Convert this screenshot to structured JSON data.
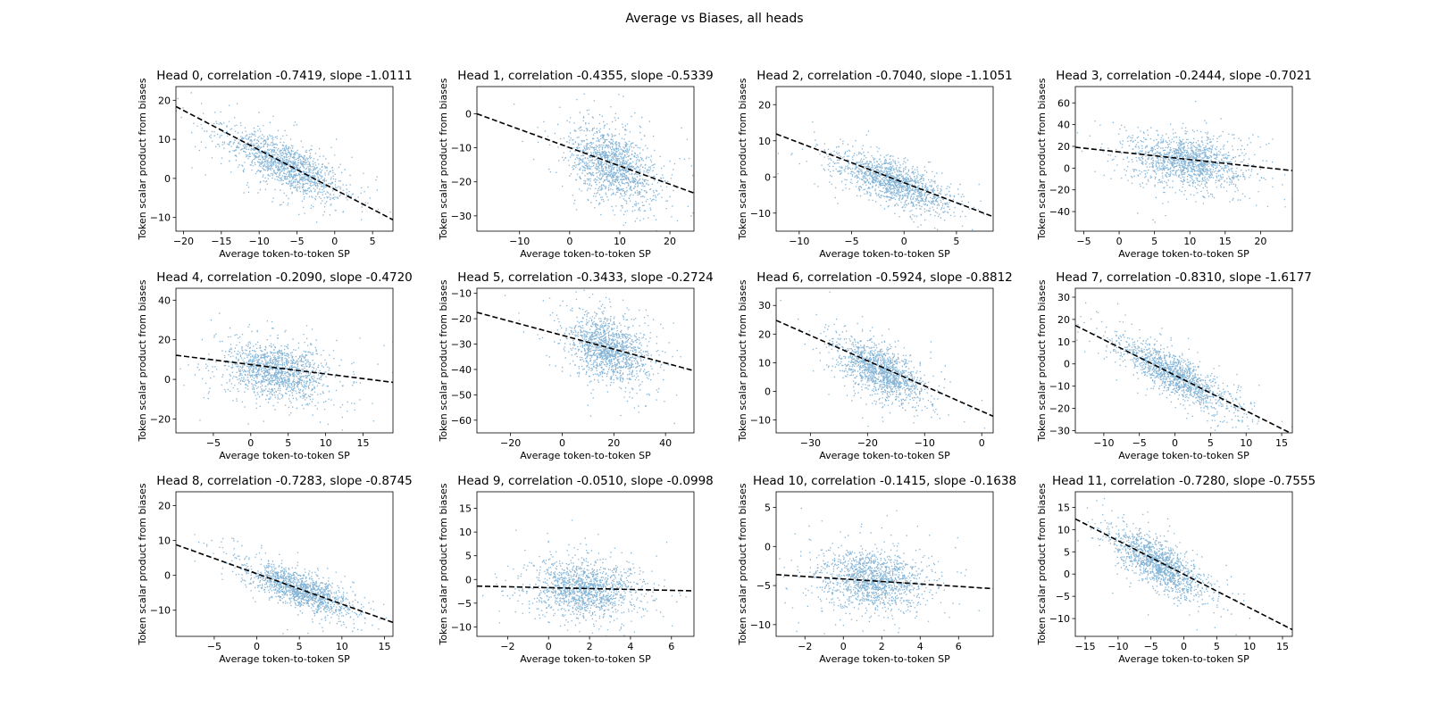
{
  "figure": {
    "title": "Average vs Biases, all heads",
    "point_color": "#1f77b4",
    "line_color": "#000000"
  },
  "chart_data": [
    {
      "type": "scatter",
      "title": "Head 0, correlation -0.7419, slope -1.0111",
      "xlabel": "Average token-to-token SP",
      "ylabel": "Token scalar product from biases",
      "xlim": [
        -21,
        7.7
      ],
      "ylim": [
        -13.5,
        23.5
      ],
      "xticks": [
        -20,
        -15,
        -10,
        -5,
        0,
        5
      ],
      "yticks": [
        -10,
        0,
        10,
        20
      ],
      "correlation": -0.7419,
      "slope": -1.0111,
      "fit_line": {
        "x": [
          -21,
          7.7
        ],
        "y": [
          18.4,
          -10.6
        ]
      },
      "cloud": {
        "center": [
          -6.5,
          3.5
        ],
        "sd": [
          3.6,
          4.2
        ],
        "corr": -0.74
      }
    },
    {
      "type": "scatter",
      "title": "Head 1, correlation -0.4355, slope -0.5339",
      "xlabel": "Average token-to-token SP",
      "ylabel": "Token scalar product from biases",
      "xlim": [
        -18.5,
        24.8
      ],
      "ylim": [
        -34.5,
        8
      ],
      "xticks": [
        -10,
        0,
        10,
        20
      ],
      "yticks": [
        -30,
        -20,
        -10,
        0
      ],
      "correlation": -0.4355,
      "slope": -0.5339,
      "fit_line": {
        "x": [
          -18.5,
          24.8
        ],
        "y": [
          0,
          -23.3
        ]
      },
      "cloud": {
        "center": [
          8.5,
          -15
        ],
        "sd": [
          4.2,
          5.5
        ],
        "corr": -0.44
      }
    },
    {
      "type": "scatter",
      "title": "Head 2, correlation -0.7040, slope -1.1051",
      "xlabel": "Average token-to-token SP",
      "ylabel": "Token scalar product from biases",
      "xlim": [
        -12.2,
        8.5
      ],
      "ylim": [
        -15,
        25
      ],
      "xticks": [
        -10,
        -5,
        0,
        5
      ],
      "yticks": [
        -10,
        0,
        10,
        20
      ],
      "correlation": -0.704,
      "slope": -1.1051,
      "fit_line": {
        "x": [
          -12.2,
          8.5
        ],
        "y": [
          11.9,
          -11
        ]
      },
      "cloud": {
        "center": [
          -1,
          -1.5
        ],
        "sd": [
          2.5,
          3.6
        ],
        "corr": -0.7
      }
    },
    {
      "type": "scatter",
      "title": "Head 3, correlation -0.2444, slope -0.7021",
      "xlabel": "Average token-to-token SP",
      "ylabel": "Token scalar product from biases",
      "xlim": [
        -6.2,
        24.5
      ],
      "ylim": [
        -58,
        75
      ],
      "xticks": [
        -5,
        0,
        5,
        10,
        15,
        20
      ],
      "yticks": [
        -40,
        -20,
        0,
        20,
        40,
        60
      ],
      "correlation": -0.2444,
      "slope": -0.7021,
      "fit_line": {
        "x": [
          -6.2,
          24.5
        ],
        "y": [
          19.2,
          -2.3
        ]
      },
      "cloud": {
        "center": [
          9.5,
          7
        ],
        "sd": [
          3.8,
          11.5
        ],
        "corr": -0.24
      }
    },
    {
      "type": "scatter",
      "title": "Head 4, correlation -0.2090, slope -0.4720",
      "xlabel": "Average token-to-token SP",
      "ylabel": "Token scalar product from biases",
      "xlim": [
        -10,
        19
      ],
      "ylim": [
        -27,
        46
      ],
      "xticks": [
        -5,
        0,
        5,
        10,
        15
      ],
      "yticks": [
        -20,
        0,
        20,
        40
      ],
      "correlation": -0.209,
      "slope": -0.472,
      "fit_line": {
        "x": [
          -10,
          19
        ],
        "y": [
          12.2,
          -1.5
        ]
      },
      "cloud": {
        "center": [
          3.5,
          4
        ],
        "sd": [
          3.2,
          6.8
        ],
        "corr": -0.21
      }
    },
    {
      "type": "scatter",
      "title": "Head 5, correlation -0.3433, slope -0.2724",
      "xlabel": "Average token-to-token SP",
      "ylabel": "Token scalar product from biases",
      "xlim": [
        -33,
        51
      ],
      "ylim": [
        -65,
        -8
      ],
      "xticks": [
        -20,
        0,
        20,
        40
      ],
      "yticks": [
        -60,
        -50,
        -40,
        -30,
        -20,
        -10
      ],
      "correlation": -0.3433,
      "slope": -0.2724,
      "fit_line": {
        "x": [
          -33,
          51
        ],
        "y": [
          -17.5,
          -40.5
        ]
      },
      "cloud": {
        "center": [
          18,
          -32
        ],
        "sd": [
          7.5,
          6.2
        ],
        "corr": -0.34
      }
    },
    {
      "type": "scatter",
      "title": "Head 6, correlation -0.5924, slope -0.8812",
      "xlabel": "Average token-to-token SP",
      "ylabel": "Token scalar product from biases",
      "xlim": [
        -36,
        2
      ],
      "ylim": [
        -14.5,
        36
      ],
      "xticks": [
        -30,
        -20,
        -10,
        0
      ],
      "yticks": [
        -10,
        0,
        10,
        20,
        30
      ],
      "correlation": -0.5924,
      "slope": -0.8812,
      "fit_line": {
        "x": [
          -36,
          2
        ],
        "y": [
          24.8,
          -8.7
        ]
      },
      "cloud": {
        "center": [
          -17.5,
          7
        ],
        "sd": [
          3.5,
          5
        ],
        "corr": -0.59
      }
    },
    {
      "type": "scatter",
      "title": "Head 7, correlation -0.8310, slope -1.6177",
      "xlabel": "Average token-to-token SP",
      "ylabel": "Token scalar product from biases",
      "xlim": [
        -14,
        16.5
      ],
      "ylim": [
        -31,
        34
      ],
      "xticks": [
        -10,
        -5,
        0,
        5,
        10,
        15
      ],
      "yticks": [
        -30,
        -20,
        -10,
        0,
        10,
        20,
        30
      ],
      "correlation": -0.831,
      "slope": -1.6177,
      "fit_line": {
        "x": [
          -14,
          16.5
        ],
        "y": [
          17.3,
          -31.5
        ]
      },
      "cloud": {
        "center": [
          0,
          -5
        ],
        "sd": [
          3.8,
          7.5
        ],
        "corr": -0.83
      }
    },
    {
      "type": "scatter",
      "title": "Head 8, correlation -0.7283, slope -0.8745",
      "xlabel": "Average token-to-token SP",
      "ylabel": "Token scalar product from biases",
      "xlim": [
        -9.5,
        16
      ],
      "ylim": [
        -17.5,
        24
      ],
      "xticks": [
        -5,
        0,
        5,
        10,
        15
      ],
      "yticks": [
        -10,
        0,
        10,
        20
      ],
      "correlation": -0.7283,
      "slope": -0.8745,
      "fit_line": {
        "x": [
          -9.5,
          16
        ],
        "y": [
          8.8,
          -13.5
        ]
      },
      "cloud": {
        "center": [
          5,
          -4
        ],
        "sd": [
          3,
          3.6
        ],
        "corr": -0.73
      }
    },
    {
      "type": "scatter",
      "title": "Head 9, correlation -0.0510, slope -0.0998",
      "xlabel": "Average token-to-token SP",
      "ylabel": "Token scalar product from biases",
      "xlim": [
        -3.5,
        7.1
      ],
      "ylim": [
        -12,
        18.5
      ],
      "xticks": [
        -2,
        0,
        2,
        4,
        6
      ],
      "yticks": [
        -10,
        -5,
        0,
        5,
        10,
        15
      ],
      "correlation": -0.051,
      "slope": -0.0998,
      "fit_line": {
        "x": [
          -3.5,
          7.1
        ],
        "y": [
          -1.4,
          -2.4
        ]
      },
      "cloud": {
        "center": [
          1.8,
          -2
        ],
        "sd": [
          1.25,
          2.8
        ],
        "corr": -0.05
      }
    },
    {
      "type": "scatter",
      "title": "Head 10, correlation -0.1415, slope -0.1638",
      "xlabel": "Average token-to-token SP",
      "ylabel": "Token scalar product from biases",
      "xlim": [
        -3.5,
        7.8
      ],
      "ylim": [
        -11.5,
        7
      ],
      "xticks": [
        -2,
        0,
        2,
        4,
        6
      ],
      "yticks": [
        -10,
        -5,
        0,
        5
      ],
      "correlation": -0.1415,
      "slope": -0.1638,
      "fit_line": {
        "x": [
          -3.5,
          7.8
        ],
        "y": [
          -3.6,
          -5.4
        ]
      },
      "cloud": {
        "center": [
          1.5,
          -4.2
        ],
        "sd": [
          1.3,
          1.8
        ],
        "corr": -0.14
      }
    },
    {
      "type": "scatter",
      "title": "Head 11, correlation -0.7280, slope -0.7555",
      "xlabel": "Average token-to-token SP",
      "ylabel": "Token scalar product from biases",
      "xlim": [
        -16.5,
        16.5
      ],
      "ylim": [
        -14,
        18.5
      ],
      "xticks": [
        -15,
        -10,
        -5,
        0,
        5,
        10,
        15
      ],
      "yticks": [
        -10,
        -5,
        0,
        5,
        10,
        15
      ],
      "correlation": -0.728,
      "slope": -0.7555,
      "fit_line": {
        "x": [
          -16.5,
          16.5
        ],
        "y": [
          12.4,
          -12.5
        ]
      },
      "cloud": {
        "center": [
          -4,
          2.5
        ],
        "sd": [
          3.3,
          3.5
        ],
        "corr": -0.73
      }
    }
  ]
}
